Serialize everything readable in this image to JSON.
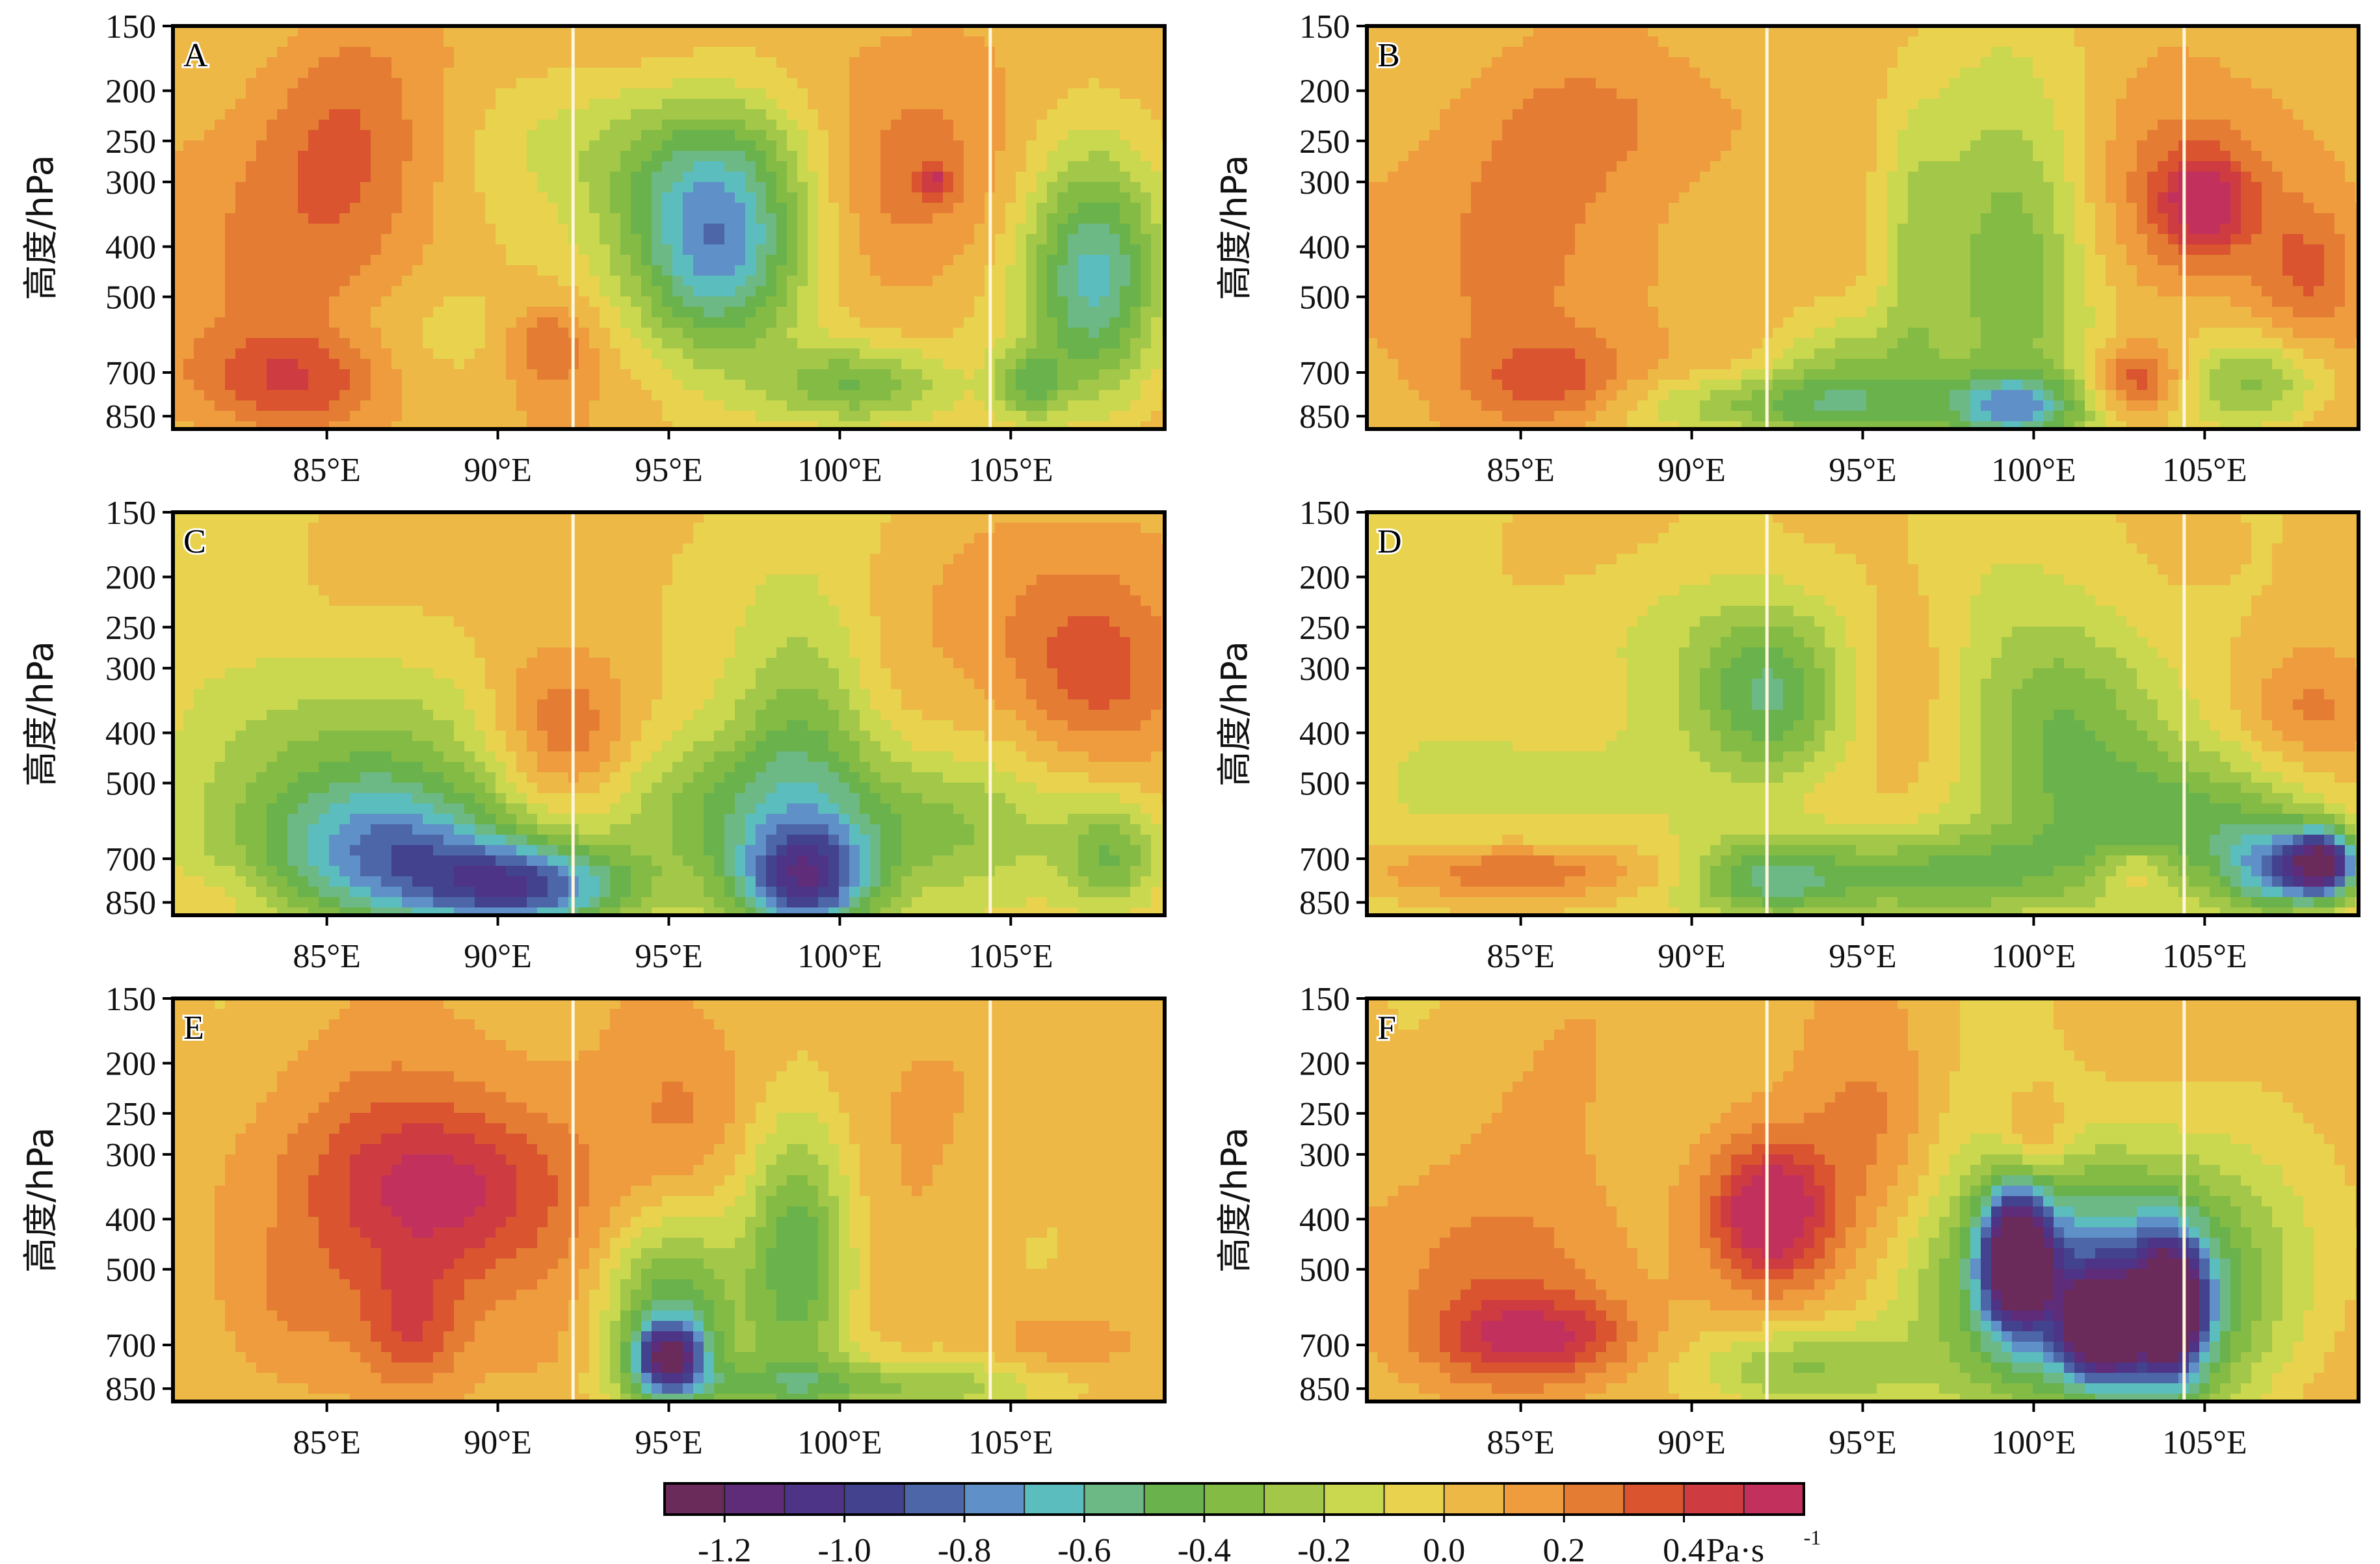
{
  "chart_data": {
    "type": "heatmap",
    "layout": "3x2 panels",
    "shared_axes": {
      "x_ticks": [
        85,
        90,
        95,
        100,
        105
      ],
      "x_tick_labels": [
        "85°E",
        "90°E",
        "95°E",
        "100°E",
        "105°E"
      ],
      "xlim": [
        80.5,
        109.5
      ],
      "y_ticks": [
        150,
        200,
        250,
        300,
        400,
        500,
        700,
        850
      ],
      "y_tick_labels": [
        "150",
        "200",
        "250",
        "300",
        "400",
        "500",
        "700",
        "850"
      ],
      "ylim": [
        150,
        900
      ],
      "y_scale": "log (pressure)",
      "y_label": "高度/hPa",
      "vertical_reference_lines_lon": [
        92.2,
        104.4
      ]
    },
    "colorbar": {
      "levels": [
        -1.3,
        -1.2,
        -1.1,
        -1.0,
        -0.9,
        -0.8,
        -0.7,
        -0.6,
        -0.5,
        -0.4,
        -0.3,
        -0.2,
        -0.1,
        0.0,
        0.1,
        0.2,
        0.3,
        0.4,
        0.5
      ],
      "colors": [
        "#6a2a5a",
        "#5e2c78",
        "#4e3486",
        "#43428f",
        "#4c66a8",
        "#5f90c8",
        "#5bbdbd",
        "#6cb985",
        "#6ab24c",
        "#83bb45",
        "#a3c748",
        "#c9d84f",
        "#e8d24e",
        "#edb846",
        "#ee9c3d",
        "#e57c34",
        "#d9542f",
        "#ce3b40",
        "#c2315e"
      ],
      "tick_labels": [
        "-1.2",
        "-1.0",
        "-0.8",
        "-0.6",
        "-0.4",
        "-0.2",
        "0.0",
        "0.2",
        "0.4"
      ],
      "tick_values": [
        -1.2,
        -1.0,
        -0.8,
        -0.6,
        -0.4,
        -0.2,
        0.0,
        0.2,
        0.4
      ],
      "unit": "Pa·s",
      "unit_superscript": "-1"
    },
    "panels": [
      {
        "label": "A",
        "background": 0.05,
        "features": [
          {
            "lon": 83.5,
            "p": 430,
            "rlon": 5.5,
            "rp": 0.7,
            "v": 0.2
          },
          {
            "lon": 85.5,
            "p": 240,
            "rlon": 2.5,
            "rp": 0.5,
            "v": 0.2
          },
          {
            "lon": 84.0,
            "p": 720,
            "rlon": 3.0,
            "rp": 0.22,
            "v": 0.35
          },
          {
            "lon": 87.5,
            "p": 600,
            "rlon": 3.0,
            "rp": 0.25,
            "v": -0.05
          },
          {
            "lon": 91.5,
            "p": 620,
            "rlon": 1.2,
            "rp": 0.2,
            "v": 0.3
          },
          {
            "lon": 92.0,
            "p": 250,
            "rlon": 3.5,
            "rp": 0.3,
            "v": -0.05
          },
          {
            "lon": 96.5,
            "p": 400,
            "rlon": 2.5,
            "rp": 0.5,
            "v": -0.55
          },
          {
            "lon": 95.5,
            "p": 320,
            "rlon": 3.5,
            "rp": 0.6,
            "v": -0.25
          },
          {
            "lon": 102.0,
            "p": 290,
            "rlon": 3.0,
            "rp": 0.4,
            "v": 0.2
          },
          {
            "lon": 102.8,
            "p": 300,
            "rlon": 0.5,
            "rp": 0.07,
            "v": 0.35
          },
          {
            "lon": 100.5,
            "p": 740,
            "rlon": 2.5,
            "rp": 0.18,
            "v": -0.4
          },
          {
            "lon": 107.5,
            "p": 460,
            "rlon": 2.0,
            "rp": 0.55,
            "v": -0.6
          },
          {
            "lon": 105.5,
            "p": 740,
            "rlon": 1.0,
            "rp": 0.15,
            "v": -0.3
          },
          {
            "lon": 97.5,
            "p": 180,
            "rlon": 5.0,
            "rp": 0.25,
            "v": 0.15
          }
        ]
      },
      {
        "label": "B",
        "background": 0.05,
        "features": [
          {
            "lon": 85.5,
            "p": 450,
            "rlon": 6.0,
            "rp": 0.7,
            "v": 0.2
          },
          {
            "lon": 86.0,
            "p": 730,
            "rlon": 2.5,
            "rp": 0.2,
            "v": 0.32
          },
          {
            "lon": 92.5,
            "p": 820,
            "rlon": 4.5,
            "rp": 0.15,
            "v": -0.35
          },
          {
            "lon": 99.5,
            "p": 450,
            "rlon": 2.5,
            "rp": 0.8,
            "v": -0.4
          },
          {
            "lon": 99.5,
            "p": 820,
            "rlon": 2.0,
            "rp": 0.15,
            "v": -0.5
          },
          {
            "lon": 94.5,
            "p": 700,
            "rlon": 2.5,
            "rp": 0.3,
            "v": -0.3
          },
          {
            "lon": 105.0,
            "p": 330,
            "rlon": 3.0,
            "rp": 0.45,
            "v": 0.3
          },
          {
            "lon": 105.0,
            "p": 330,
            "rlon": 1.2,
            "rp": 0.2,
            "v": 0.45
          },
          {
            "lon": 108.0,
            "p": 450,
            "rlon": 1.5,
            "rp": 0.3,
            "v": 0.3
          },
          {
            "lon": 103.0,
            "p": 720,
            "rlon": 1.3,
            "rp": 0.15,
            "v": 0.42
          },
          {
            "lon": 96.5,
            "p": 400,
            "rlon": 1.0,
            "rp": 0.6,
            "v": -0.15
          },
          {
            "lon": 106.5,
            "p": 740,
            "rlon": 2.0,
            "rp": 0.2,
            "v": -0.3
          },
          {
            "lon": 88.0,
            "p": 230,
            "rlon": 4.0,
            "rp": 0.3,
            "v": 0.15
          }
        ]
      },
      {
        "label": "C",
        "background": 0.0,
        "features": [
          {
            "lon": 85.5,
            "p": 520,
            "rlon": 4.5,
            "rp": 0.6,
            "v": -0.4
          },
          {
            "lon": 91.0,
            "p": 800,
            "rlon": 3.0,
            "rp": 0.2,
            "v": -0.85
          },
          {
            "lon": 87.0,
            "p": 700,
            "rlon": 3.5,
            "rp": 0.3,
            "v": -0.5
          },
          {
            "lon": 99.0,
            "p": 780,
            "rlon": 2.0,
            "rp": 0.25,
            "v": -0.9
          },
          {
            "lon": 97.5,
            "p": 560,
            "rlon": 5.0,
            "rp": 0.35,
            "v": -0.4
          },
          {
            "lon": 99.0,
            "p": 380,
            "rlon": 2.0,
            "rp": 0.5,
            "v": -0.3
          },
          {
            "lon": 92.0,
            "p": 410,
            "rlon": 2.0,
            "rp": 0.35,
            "v": 0.3
          },
          {
            "lon": 90.5,
            "p": 300,
            "rlon": 2.5,
            "rp": 0.5,
            "v": 0.1
          },
          {
            "lon": 107.5,
            "p": 320,
            "rlon": 2.5,
            "rp": 0.4,
            "v": 0.3
          },
          {
            "lon": 106.5,
            "p": 220,
            "rlon": 3.5,
            "rp": 0.5,
            "v": 0.15
          },
          {
            "lon": 108.0,
            "p": 700,
            "rlon": 1.5,
            "rp": 0.25,
            "v": -0.4
          },
          {
            "lon": 103.0,
            "p": 620,
            "rlon": 3.5,
            "rp": 0.3,
            "v": -0.2
          },
          {
            "lon": 82.0,
            "p": 820,
            "rlon": 2.0,
            "rp": 0.15,
            "v": 0.1
          }
        ]
      },
      {
        "label": "D",
        "background": 0.0,
        "features": [
          {
            "lon": 85.0,
            "p": 740,
            "rlon": 4.5,
            "rp": 0.12,
            "v": 0.32
          },
          {
            "lon": 92.3,
            "p": 340,
            "rlon": 2.2,
            "rp": 0.4,
            "v": -0.5
          },
          {
            "lon": 92.3,
            "p": 770,
            "rlon": 2.5,
            "rp": 0.2,
            "v": -0.55
          },
          {
            "lon": 101.0,
            "p": 390,
            "rlon": 3.0,
            "rp": 0.55,
            "v": -0.45
          },
          {
            "lon": 97.5,
            "p": 750,
            "rlon": 4.0,
            "rp": 0.2,
            "v": -0.4
          },
          {
            "lon": 104.5,
            "p": 600,
            "rlon": 4.0,
            "rp": 0.3,
            "v": -0.35
          },
          {
            "lon": 108.5,
            "p": 720,
            "rlon": 1.0,
            "rp": 0.15,
            "v": -1.15
          },
          {
            "lon": 107.0,
            "p": 740,
            "rlon": 1.5,
            "rp": 0.2,
            "v": -0.6
          },
          {
            "lon": 108.0,
            "p": 360,
            "rlon": 2.0,
            "rp": 0.3,
            "v": 0.25
          },
          {
            "lon": 96.5,
            "p": 320,
            "rlon": 1.5,
            "rp": 0.5,
            "v": 0.12
          },
          {
            "lon": 84.0,
            "p": 480,
            "rlon": 4.0,
            "rp": 0.4,
            "v": -0.15
          },
          {
            "lon": 103.0,
            "p": 740,
            "rlon": 1.0,
            "rp": 0.12,
            "v": 0.25
          },
          {
            "lon": 87.5,
            "p": 250,
            "rlon": 4.0,
            "rp": 0.3,
            "v": -0.1
          }
        ]
      },
      {
        "label": "E",
        "background": 0.05,
        "features": [
          {
            "lon": 88.5,
            "p": 350,
            "rlon": 3.5,
            "rp": 0.4,
            "v": 0.45
          },
          {
            "lon": 87.5,
            "p": 650,
            "rlon": 1.5,
            "rp": 0.3,
            "v": 0.35
          },
          {
            "lon": 88.5,
            "p": 400,
            "rlon": 5.5,
            "rp": 0.65,
            "v": 0.2
          },
          {
            "lon": 95.0,
            "p": 620,
            "rlon": 2.0,
            "rp": 0.45,
            "v": -0.55
          },
          {
            "lon": 95.0,
            "p": 740,
            "rlon": 1.0,
            "rp": 0.15,
            "v": -0.85
          },
          {
            "lon": 98.8,
            "p": 480,
            "rlon": 1.6,
            "rp": 0.6,
            "v": -0.5
          },
          {
            "lon": 95.5,
            "p": 250,
            "rlon": 2.0,
            "rp": 0.4,
            "v": 0.2
          },
          {
            "lon": 98.5,
            "p": 200,
            "rlon": 3.0,
            "rp": 0.3,
            "v": 0.1
          },
          {
            "lon": 106.0,
            "p": 700,
            "rlon": 2.0,
            "rp": 0.2,
            "v": 0.2
          },
          {
            "lon": 100.5,
            "p": 840,
            "rlon": 6.0,
            "rp": 0.12,
            "v": -0.3
          },
          {
            "lon": 84.0,
            "p": 600,
            "rlon": 2.0,
            "rp": 0.3,
            "v": 0.15
          }
        ]
      },
      {
        "label": "F",
        "background": 0.05,
        "features": [
          {
            "lon": 85.5,
            "p": 680,
            "rlon": 2.8,
            "rp": 0.18,
            "v": 0.45
          },
          {
            "lon": 84.5,
            "p": 550,
            "rlon": 4.5,
            "rp": 0.45,
            "v": 0.25
          },
          {
            "lon": 92.3,
            "p": 380,
            "rlon": 2.5,
            "rp": 0.4,
            "v": 0.35
          },
          {
            "lon": 92.3,
            "p": 390,
            "rlon": 1.4,
            "rp": 0.25,
            "v": 0.45
          },
          {
            "lon": 95.5,
            "p": 260,
            "rlon": 2.0,
            "rp": 0.5,
            "v": 0.25
          },
          {
            "lon": 99.5,
            "p": 470,
            "rlon": 1.0,
            "rp": 0.3,
            "v": -1.1
          },
          {
            "lon": 102.0,
            "p": 650,
            "rlon": 1.0,
            "rp": 0.2,
            "v": -1.1
          },
          {
            "lon": 104.0,
            "p": 600,
            "rlon": 1.0,
            "rp": 0.3,
            "v": -1.0
          },
          {
            "lon": 102.0,
            "p": 560,
            "rlon": 4.0,
            "rp": 0.5,
            "v": -0.6
          },
          {
            "lon": 101.5,
            "p": 500,
            "rlon": 5.5,
            "rp": 0.7,
            "v": -0.3
          },
          {
            "lon": 93.0,
            "p": 780,
            "rlon": 3.0,
            "rp": 0.2,
            "v": -0.35
          },
          {
            "lon": 100.0,
            "p": 280,
            "rlon": 1.0,
            "rp": 0.2,
            "v": 0.3
          }
        ]
      }
    ]
  }
}
